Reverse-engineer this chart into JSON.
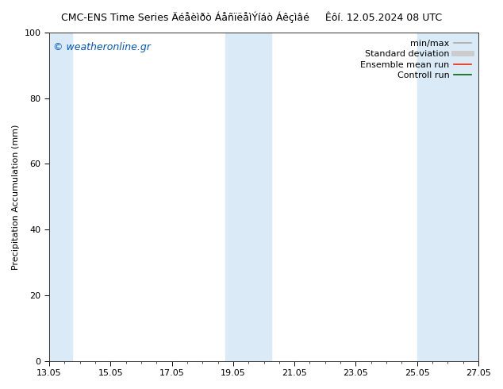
{
  "title_left": "CMC-ENS Time Series Äéåèìðò ÁåñïëåìÝíáò Áêçìâé",
  "title_right": "Êôí. 12.05.2024 08 UTC",
  "ylabel": "Precipitation Accumulation (mm)",
  "ylim": [
    0,
    100
  ],
  "x_tick_positions": [
    0,
    2,
    4,
    6,
    8,
    10,
    12,
    14
  ],
  "x_tick_labels": [
    "13.05",
    "15.05",
    "17.05",
    "19.05",
    "21.05",
    "23.05",
    "25.05",
    "27.05"
  ],
  "y_ticks": [
    0,
    20,
    40,
    60,
    80,
    100
  ],
  "background_color": "#ffffff",
  "shaded_bands": [
    {
      "x_start": 0.0,
      "x_end": 0.75,
      "color": "#daeaf7"
    },
    {
      "x_start": 5.75,
      "x_end": 7.25,
      "color": "#daeaf7"
    },
    {
      "x_start": 12.0,
      "x_end": 14.0,
      "color": "#daeaf7"
    }
  ],
  "watermark": "© weatheronline.gr",
  "watermark_color": "#0055cc",
  "title_fontsize": 9,
  "axis_label_fontsize": 8,
  "tick_fontsize": 8,
  "legend_fontsize": 8,
  "watermark_fontsize": 9
}
